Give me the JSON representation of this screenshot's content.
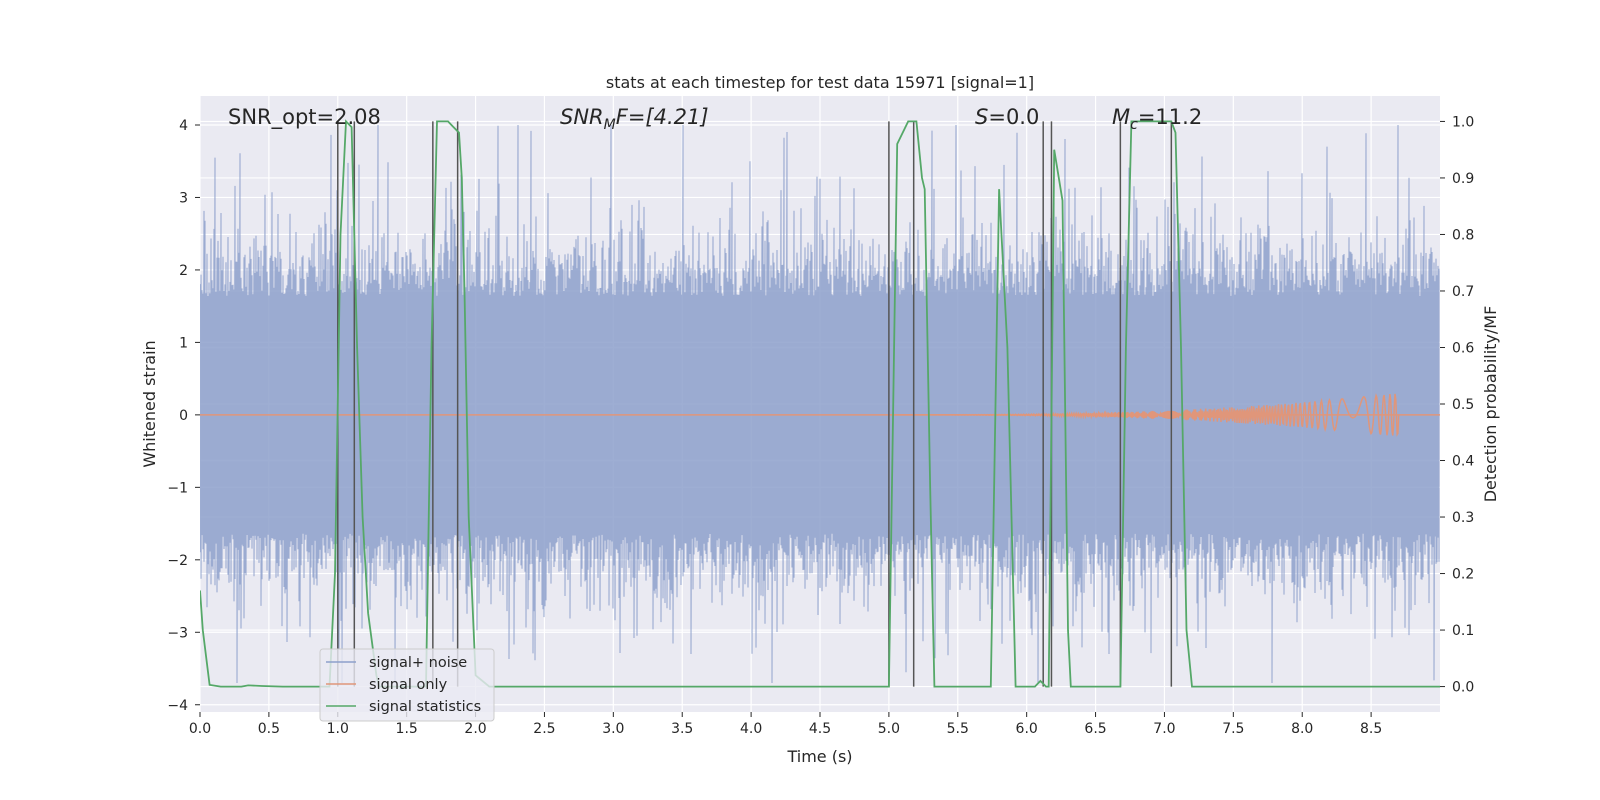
{
  "chart_data": {
    "type": "line",
    "title": "stats at each timestep for test data 15971 [signal=1]",
    "xlabel": "Time (s)",
    "ylabel": "Whitened strain",
    "y2label": "Detection probability/MF",
    "xlim": [
      0,
      9
    ],
    "ylim": [
      -4.1,
      4.4
    ],
    "y2lim": [
      -0.045,
      1.045
    ],
    "xticks": [
      "0.0",
      "0.5",
      "1.0",
      "1.5",
      "2.0",
      "2.5",
      "3.0",
      "3.5",
      "4.0",
      "4.5",
      "5.0",
      "5.5",
      "6.0",
      "6.5",
      "7.0",
      "7.5",
      "8.0",
      "8.5"
    ],
    "yticks": [
      "4",
      "3",
      "2",
      "1",
      "0",
      "−1",
      "−2",
      "−3",
      "−4"
    ],
    "y2ticks": [
      "0.0",
      "0.1",
      "0.2",
      "0.3",
      "0.4",
      "0.5",
      "0.6",
      "0.7",
      "0.8",
      "0.9",
      "1.0"
    ],
    "annotations": {
      "snr_opt": "SNR_opt=2.08",
      "snr_mf_base": "SNR",
      "snr_mf_sub": "M",
      "snr_mf_rest": "F=[4.21]",
      "s_base": "S",
      "s_rest": "=0.0",
      "mc_base": "M",
      "mc_sub": "c",
      "mc_rest": "=11.2"
    },
    "legend": {
      "position": "lower-left",
      "entries": [
        "signal+ noise",
        "signal only",
        "signal statistics"
      ]
    },
    "colors": {
      "noise": "#8da0cb",
      "signal": "#e0967a",
      "stats": "#55a868",
      "vlines": "#555555",
      "background": "#eaeaf2",
      "grid": "#ffffff"
    },
    "noise_envelope": {
      "typical_max": 2.0,
      "typical_min": -2.0,
      "peak_max": 4.0,
      "peak_min": -3.7
    },
    "signal_chirp": {
      "start": 5.0,
      "end": 8.7,
      "peak_amplitude": 0.3
    },
    "series": [
      {
        "name": "signal statistics",
        "axis": "right",
        "x": [
          0.0,
          0.02,
          0.07,
          0.15,
          0.3,
          0.35,
          0.45,
          0.6,
          0.9,
          0.94,
          0.98,
          1.02,
          1.06,
          1.1,
          1.14,
          1.18,
          1.22,
          1.28,
          1.3,
          1.32,
          1.6,
          1.64,
          1.68,
          1.72,
          1.76,
          1.8,
          1.84,
          1.88,
          1.9,
          1.92,
          1.95,
          2.0,
          2.1,
          3.0,
          4.0,
          4.98,
          5.0,
          5.06,
          5.14,
          5.2,
          5.24,
          5.26,
          5.3,
          5.33,
          5.4,
          5.6,
          5.74,
          5.8,
          5.86,
          5.92,
          5.94,
          5.98,
          6.06,
          6.1,
          6.14,
          6.16,
          6.2,
          6.26,
          6.3,
          6.32,
          6.34,
          6.5,
          6.68,
          6.72,
          6.76,
          6.8,
          6.85,
          7.05,
          7.08,
          7.12,
          7.16,
          7.2,
          8.0,
          9.0
        ],
        "values": [
          0.17,
          0.1,
          0.003,
          0.0,
          0.0,
          0.002,
          0.001,
          0.0,
          0.0,
          0.0,
          0.2,
          0.8,
          1.0,
          0.99,
          0.6,
          0.3,
          0.13,
          0.02,
          0.0,
          0.0,
          0.0,
          0.0,
          0.6,
          1.0,
          1.0,
          1.0,
          0.99,
          0.98,
          0.9,
          0.7,
          0.3,
          0.02,
          0.0,
          0.0,
          0.0,
          0.0,
          0.0,
          0.96,
          1.0,
          1.0,
          0.9,
          0.88,
          0.35,
          0.0,
          0.0,
          0.0,
          0.0,
          0.88,
          0.6,
          0.0,
          0.0,
          0.0,
          0.0,
          0.01,
          0.0,
          0.0,
          0.95,
          0.86,
          0.1,
          0.0,
          0.0,
          0.0,
          0.0,
          0.6,
          1.0,
          1.0,
          1.0,
          1.0,
          0.98,
          0.6,
          0.1,
          0.0,
          0.0,
          0.0
        ]
      }
    ],
    "vlines_x": [
      1.0,
      1.12,
      1.69,
      1.87,
      5.0,
      5.18,
      6.12,
      6.18,
      6.68,
      7.05
    ]
  }
}
